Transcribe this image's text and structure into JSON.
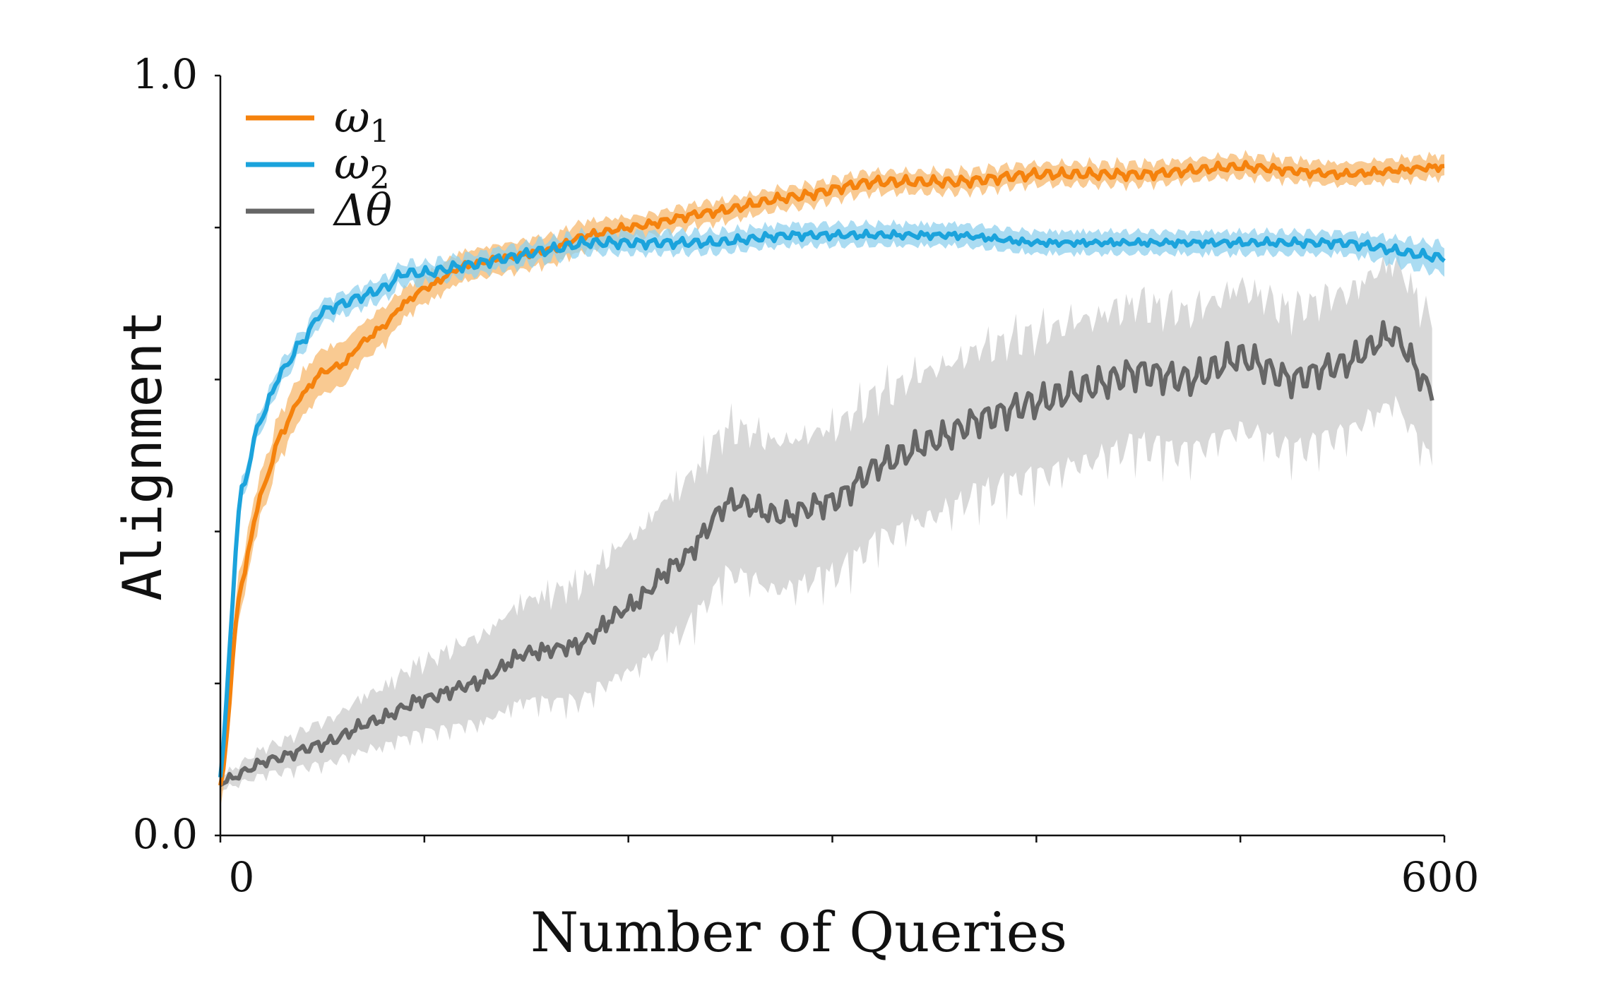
{
  "chart_data": {
    "type": "line",
    "xlabel": "Number of Queries",
    "ylabel": "Alignment",
    "xlim": [
      0,
      600
    ],
    "ylim": [
      0,
      1
    ],
    "xticks": [
      0,
      100,
      200,
      300,
      400,
      500,
      600
    ],
    "xtick_labels": [
      {
        "value": 0,
        "label": "0"
      },
      {
        "value": 600,
        "label": "600"
      }
    ],
    "yticks": [
      0,
      0.2,
      0.4,
      0.6,
      0.8,
      1.0
    ],
    "ytick_labels": [
      {
        "value": 0,
        "label": "0.0"
      },
      {
        "value": 1,
        "label": "1.0"
      }
    ],
    "legend": {
      "position": "top-left"
    },
    "series": [
      {
        "name": "ω1",
        "name_main": "ω",
        "name_sub": "1",
        "color": "#f5820d",
        "band_color": "#f7b86e",
        "x": [
          0,
          10,
          20,
          30,
          40,
          50,
          60,
          70,
          80,
          90,
          100,
          120,
          140,
          160,
          180,
          200,
          240,
          280,
          320,
          360,
          400,
          450,
          500,
          550,
          600
        ],
        "values": [
          0.06,
          0.33,
          0.45,
          0.53,
          0.58,
          0.61,
          0.62,
          0.65,
          0.67,
          0.7,
          0.72,
          0.75,
          0.76,
          0.77,
          0.79,
          0.8,
          0.82,
          0.84,
          0.86,
          0.86,
          0.87,
          0.87,
          0.88,
          0.87,
          0.88
        ],
        "band": [
          0.03,
          0.03,
          0.03,
          0.03,
          0.03,
          0.03,
          0.03,
          0.025,
          0.025,
          0.02,
          0.02,
          0.02,
          0.02,
          0.02,
          0.02,
          0.015,
          0.015,
          0.015,
          0.015,
          0.015,
          0.015,
          0.015,
          0.015,
          0.015,
          0.015
        ]
      },
      {
        "name": "ω2",
        "name_main": "ω",
        "name_sub": "2",
        "color": "#1ba3dc",
        "band_color": "#8fd0ee",
        "x": [
          0,
          10,
          20,
          30,
          40,
          50,
          60,
          70,
          80,
          90,
          100,
          120,
          140,
          160,
          180,
          200,
          240,
          280,
          320,
          360,
          400,
          450,
          500,
          550,
          600
        ],
        "values": [
          0.08,
          0.45,
          0.55,
          0.61,
          0.65,
          0.69,
          0.7,
          0.71,
          0.72,
          0.74,
          0.74,
          0.75,
          0.76,
          0.77,
          0.78,
          0.78,
          0.78,
          0.79,
          0.79,
          0.79,
          0.78,
          0.78,
          0.78,
          0.78,
          0.76
        ],
        "band": [
          0.02,
          0.015,
          0.015,
          0.015,
          0.015,
          0.015,
          0.015,
          0.015,
          0.015,
          0.015,
          0.015,
          0.015,
          0.015,
          0.015,
          0.015,
          0.015,
          0.015,
          0.015,
          0.015,
          0.015,
          0.015,
          0.015,
          0.015,
          0.015,
          0.02
        ]
      },
      {
        "name": "Δθ",
        "name_main": "Δθ",
        "name_sub": "",
        "color": "#666666",
        "band_color": "#d4d4d4",
        "x": [
          0,
          25,
          50,
          75,
          100,
          125,
          150,
          175,
          200,
          225,
          250,
          275,
          300,
          325,
          350,
          375,
          400,
          425,
          450,
          475,
          500,
          525,
          550,
          575,
          595
        ],
        "values": [
          0.07,
          0.1,
          0.12,
          0.15,
          0.18,
          0.2,
          0.24,
          0.25,
          0.3,
          0.36,
          0.44,
          0.42,
          0.44,
          0.49,
          0.52,
          0.55,
          0.57,
          0.59,
          0.61,
          0.6,
          0.63,
          0.6,
          0.62,
          0.66,
          0.58
        ],
        "band": [
          0.01,
          0.02,
          0.03,
          0.04,
          0.05,
          0.06,
          0.07,
          0.08,
          0.09,
          0.1,
          0.1,
          0.1,
          0.1,
          0.1,
          0.1,
          0.1,
          0.1,
          0.1,
          0.1,
          0.1,
          0.1,
          0.1,
          0.1,
          0.1,
          0.1
        ]
      }
    ]
  }
}
